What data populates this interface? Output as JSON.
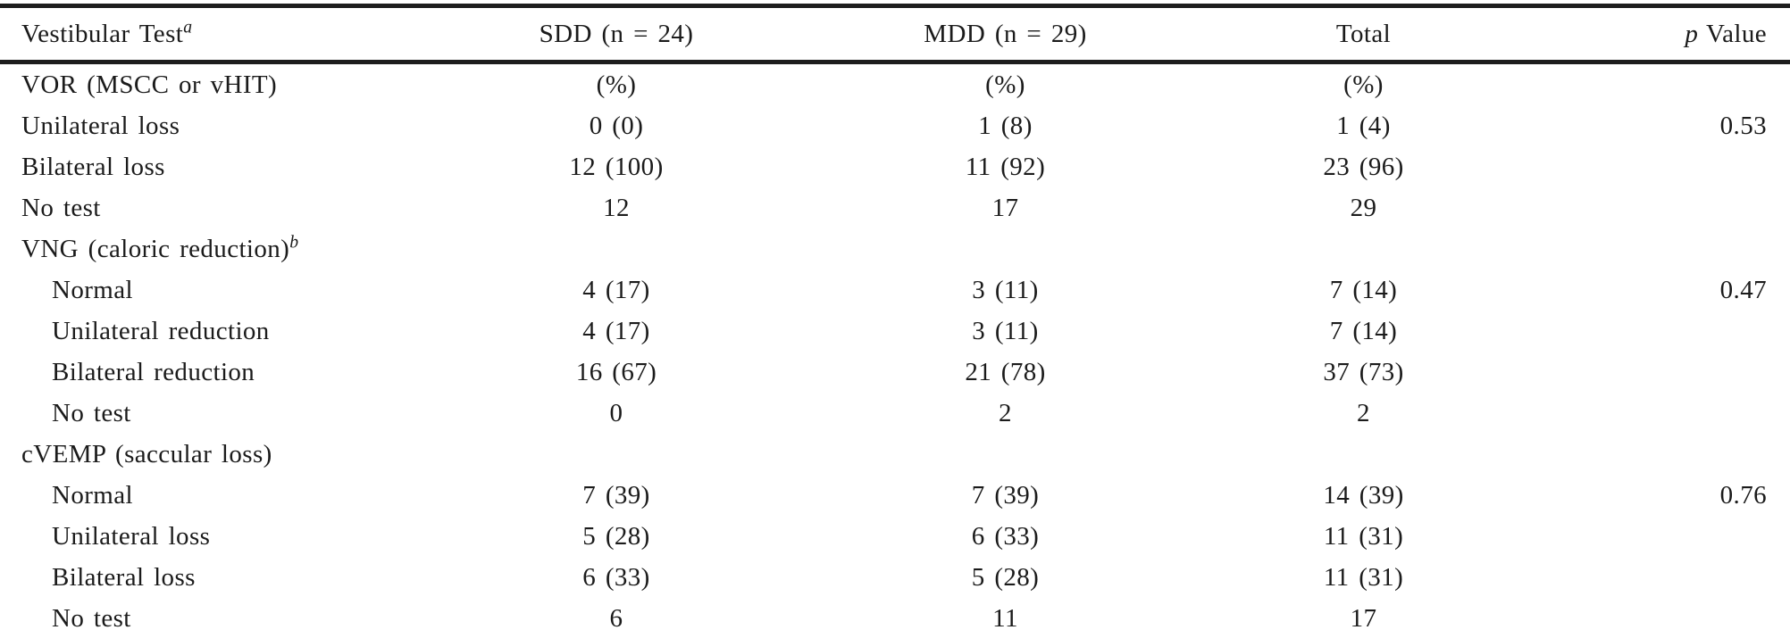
{
  "table": {
    "header": {
      "test": {
        "text": "Vestibular Test",
        "sup": "a"
      },
      "sdd": "SDD (n = 24)",
      "mdd": "MDD (n = 29)",
      "total": "Total",
      "p": {
        "italic": "p",
        "rest": "Value"
      }
    },
    "rows": [
      {
        "label": "VOR (MSCC or vHIT)",
        "sdd": "(%)",
        "mdd": "(%)",
        "total": "(%)",
        "p": ""
      },
      {
        "label": "Unilateral loss",
        "sdd": "0 (0)",
        "mdd": "1 (8)",
        "total": "1 (4)",
        "p": "0.53"
      },
      {
        "label": "Bilateral loss",
        "sdd": "12 (100)",
        "mdd": "11 (92)",
        "total": "23 (96)",
        "p": ""
      },
      {
        "label": "No test",
        "sdd": "12",
        "mdd": "17",
        "total": "29",
        "p": ""
      },
      {
        "label": "VNG (caloric reduction)",
        "sup": "b",
        "sdd": "",
        "mdd": "",
        "total": "",
        "p": ""
      },
      {
        "label": "Normal",
        "sdd": "4 (17)",
        "mdd": "3 (11)",
        "total": "7 (14)",
        "p": "0.47"
      },
      {
        "label": "Unilateral reduction",
        "sdd": "4 (17)",
        "mdd": "3 (11)",
        "total": "7 (14)",
        "p": ""
      },
      {
        "label": "Bilateral reduction",
        "sdd": "16 (67)",
        "mdd": "21 (78)",
        "total": "37 (73)",
        "p": ""
      },
      {
        "label": "No test",
        "sdd": "0",
        "mdd": "2",
        "total": "2",
        "p": ""
      },
      {
        "label": "cVEMP (saccular loss)",
        "sdd": "",
        "mdd": "",
        "total": "",
        "p": ""
      },
      {
        "label": "Normal",
        "sdd": "7 (39)",
        "mdd": "7 (39)",
        "total": "14 (39)",
        "p": "0.76"
      },
      {
        "label": "Unilateral loss",
        "sdd": "5 (28)",
        "mdd": "6 (33)",
        "total": "11 (31)",
        "p": ""
      },
      {
        "label": "Bilateral loss",
        "sdd": "6 (33)",
        "mdd": "5 (28)",
        "total": "11 (31)",
        "p": ""
      },
      {
        "label": "No test",
        "sdd": "6",
        "mdd": "11",
        "total": "17",
        "p": ""
      }
    ],
    "colors": {
      "text": "#1b1b1b",
      "rule": "#1d1d1d",
      "background": "#ffffff"
    }
  }
}
